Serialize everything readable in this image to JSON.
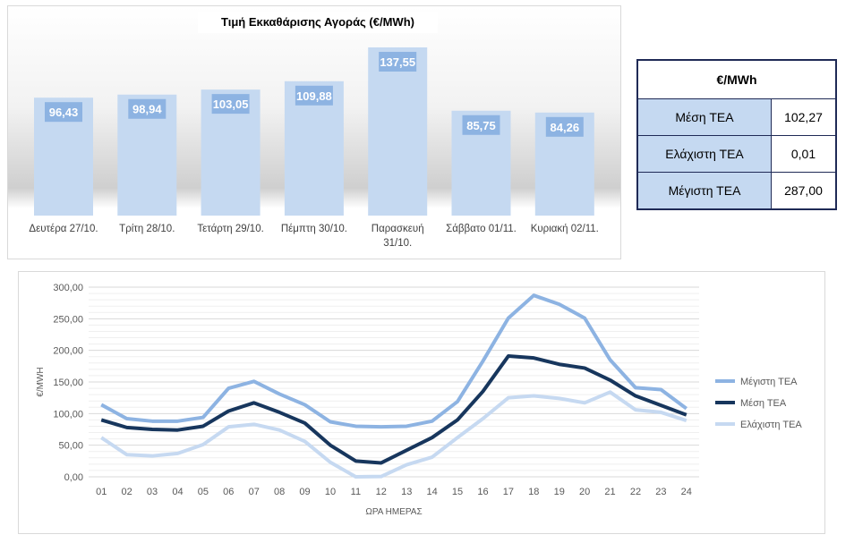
{
  "chart_data": [
    {
      "type": "bar",
      "title": "Τιμή Εκκαθάρισης Αγοράς (€/MWh)",
      "categories": [
        [
          "Δευτέρα 27/10."
        ],
        [
          "Τρίτη 28/10."
        ],
        [
          "Τετάρτη 29/10."
        ],
        [
          "Πέμπτη 30/10."
        ],
        [
          "Παρασκευή",
          "31/10."
        ],
        [
          "Σάββατο 01/11."
        ],
        [
          "Κυριακή 02/11."
        ]
      ],
      "values": [
        96.43,
        98.94,
        103.05,
        109.88,
        137.55,
        85.75,
        84.26
      ],
      "labels": [
        "96,43",
        "98,94",
        "103,05",
        "109,88",
        "137,55",
        "85,75",
        "84,26"
      ],
      "bar_color": "#c5d9f1",
      "label_color": "#8db3e2"
    },
    {
      "type": "line",
      "xlabel": "ΩΡΑ ΗΜΕΡΑΣ",
      "ylabel": "€/MWH",
      "ylim": [
        0,
        300
      ],
      "yticks": [
        "0,00",
        "50,00",
        "100,00",
        "150,00",
        "200,00",
        "250,00",
        "300,00"
      ],
      "x": [
        "01",
        "02",
        "03",
        "04",
        "05",
        "06",
        "07",
        "08",
        "09",
        "10",
        "11",
        "12",
        "13",
        "14",
        "15",
        "16",
        "17",
        "18",
        "19",
        "20",
        "21",
        "22",
        "23",
        "24"
      ],
      "series": [
        {
          "name": "Μέγιστη ΤΕΑ",
          "color": "#8db3e2",
          "values": [
            114,
            92,
            88,
            88,
            94,
            140,
            151,
            131,
            114,
            87,
            80,
            79,
            80,
            88,
            119,
            183,
            251,
            287,
            273,
            251,
            185,
            141,
            138,
            108
          ]
        },
        {
          "name": "Μέση ΤΕΑ",
          "color": "#17365d",
          "values": [
            90,
            78,
            75,
            74,
            80,
            104,
            117,
            102,
            85,
            50,
            25,
            22,
            42,
            62,
            90,
            135,
            191,
            188,
            178,
            172,
            153,
            128,
            113,
            98
          ]
        },
        {
          "name": "Ελάχιστη ΤΕΑ",
          "color": "#c6d9f1",
          "values": [
            62,
            35,
            33,
            37,
            51,
            79,
            83,
            74,
            56,
            23,
            0.01,
            0.5,
            19,
            31,
            62,
            92,
            125,
            128,
            124,
            117,
            134,
            106,
            102,
            89
          ]
        }
      ],
      "legend": "right"
    }
  ],
  "table": {
    "header": "€/MWh",
    "rows": [
      {
        "label": "Μέση ΤΕΑ",
        "value": "102,27"
      },
      {
        "label": "Ελάχιστη ΤΕΑ",
        "value": "0,01"
      },
      {
        "label": "Μέγιστη ΤΕΑ",
        "value": "287,00"
      }
    ]
  }
}
